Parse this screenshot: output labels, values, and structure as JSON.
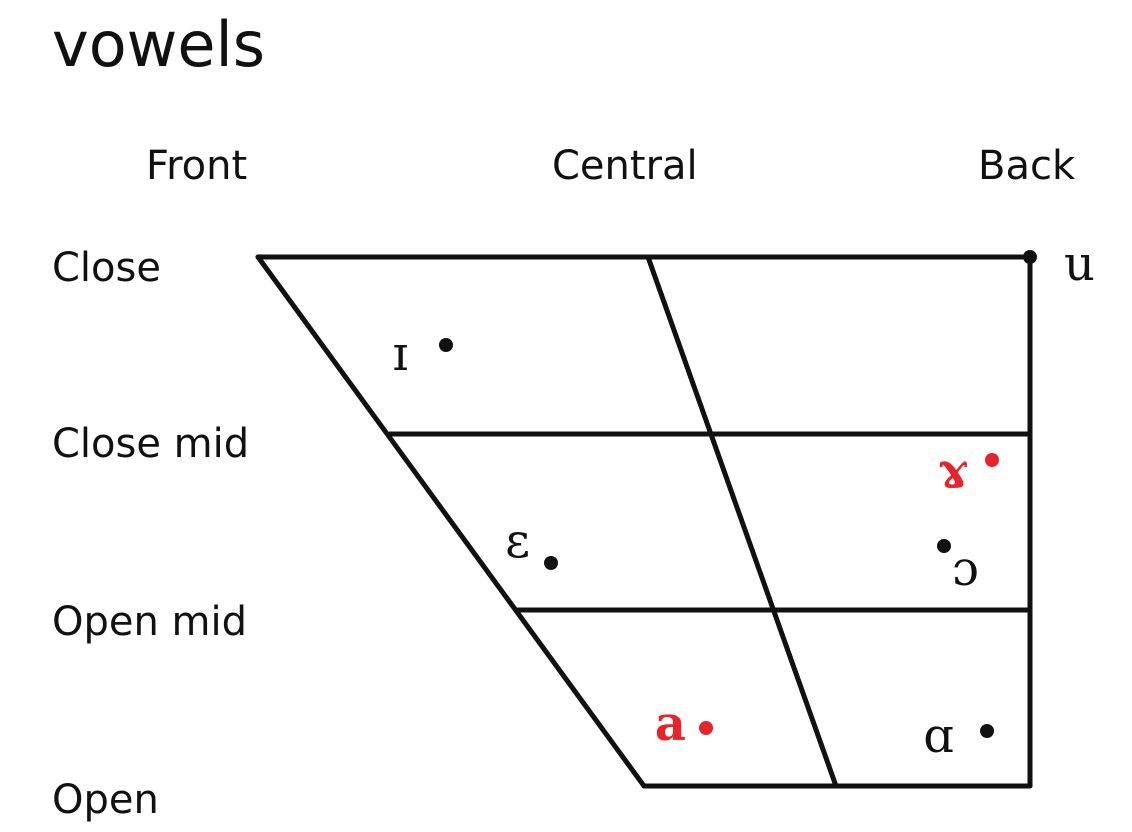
{
  "title": "vowels",
  "columns": {
    "front": "Front",
    "central": "Central",
    "back": "Back"
  },
  "rows": {
    "close": "Close",
    "close_mid": "Close mid",
    "open_mid": "Open mid",
    "open": "Open"
  },
  "colors": {
    "ink": "#111111",
    "highlight": "#e8242b"
  },
  "vowels": [
    {
      "symbol": "u",
      "highlighted": false
    },
    {
      "symbol": "ɪ",
      "highlighted": false
    },
    {
      "symbol": "ɤ",
      "highlighted": true
    },
    {
      "symbol": "ɛ",
      "highlighted": false
    },
    {
      "symbol": "ɔ",
      "highlighted": false
    },
    {
      "symbol": "a",
      "highlighted": true
    },
    {
      "symbol": "ɑ",
      "highlighted": false
    }
  ]
}
